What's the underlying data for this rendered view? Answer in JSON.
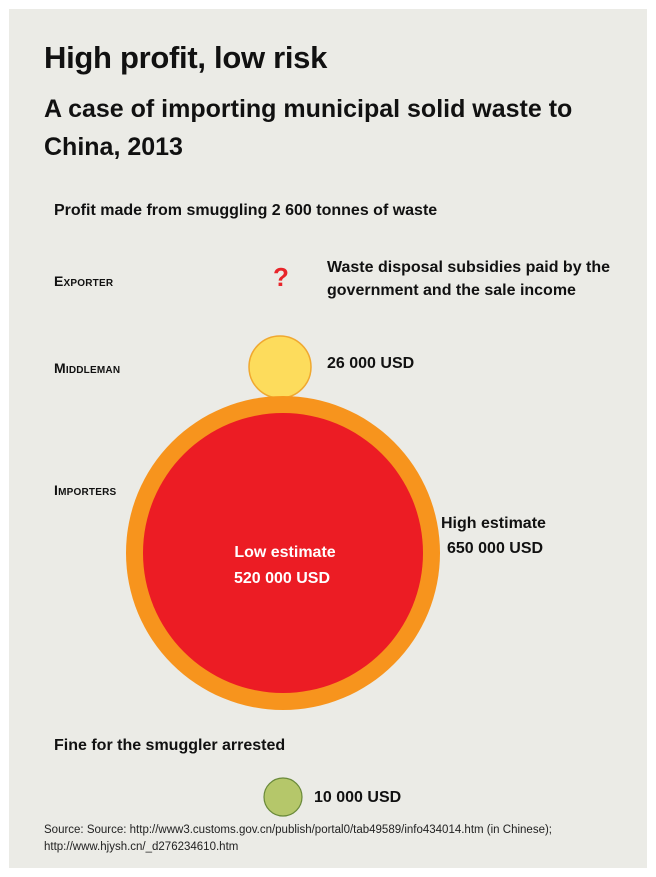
{
  "title": "High profit, low risk",
  "subtitle": "A case of importing municipal solid waste to China, 2013",
  "section_profit": "Profit made from smuggling 2 600 tonnes of waste",
  "section_fine": "Fine for the smuggler arrested",
  "rows": {
    "exporter": "Exporter",
    "middleman": "Middleman",
    "importers": "Importers"
  },
  "exporter_value": "Waste disposal subsidies paid by the government and the sale income",
  "exporter_unknown_mark": "?",
  "middleman_value": "26 000 USD",
  "importers_high": {
    "label": "High estimate",
    "value": "650 000 USD"
  },
  "importers_low": {
    "label": "Low estimate",
    "value": "520 000 USD"
  },
  "fine_value": "10 000 USD",
  "source": "Source: Source: http://www3.customs.gov.cn/publish/portal0/tab49589/info434014.htm (in Chinese); http://www.hjysh.cn/_d276234610.htm",
  "colors": {
    "middleman": "#fddc5c",
    "middleman_stroke": "#f0a830",
    "high": "#f7941d",
    "low": "#ec1c24",
    "fine": "#b5c76a",
    "fine_stroke": "#6a8a3a",
    "unknown": "#e8252a"
  },
  "chart_data": {
    "type": "bubble",
    "unit": "USD",
    "series": [
      {
        "category": "Exporter",
        "value": null
      },
      {
        "category": "Middleman",
        "value": 26000
      },
      {
        "category": "Importers",
        "name": "High estimate",
        "value": 650000
      },
      {
        "category": "Importers",
        "name": "Low estimate",
        "value": 520000
      },
      {
        "category": "Fine for the smuggler arrested",
        "value": 10000
      }
    ]
  }
}
